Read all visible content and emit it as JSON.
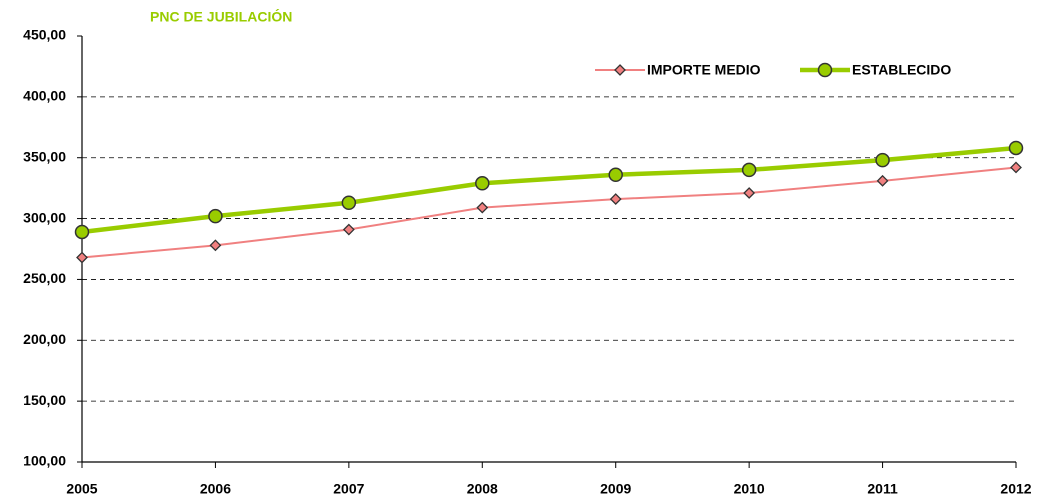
{
  "chart_data": {
    "type": "line",
    "title": "PNC DE JUBILACIÓN",
    "categories": [
      "2005",
      "2006",
      "2007",
      "2008",
      "2009",
      "2010",
      "2011",
      "2012"
    ],
    "series": [
      {
        "name": "IMPORTE MEDIO",
        "color": "#f08080",
        "marker": "diamond",
        "values": [
          268,
          278,
          291,
          309,
          316,
          321,
          331,
          342
        ]
      },
      {
        "name": "ESTABLECIDO",
        "color": "#99cc00",
        "marker": "circle",
        "values": [
          289,
          302,
          313,
          329,
          336,
          340,
          348,
          358
        ]
      }
    ],
    "ylim": [
      100,
      450
    ],
    "yticks": [
      {
        "value": 100,
        "label": "100,00"
      },
      {
        "value": 150,
        "label": "150,00"
      },
      {
        "value": 200,
        "label": "200,00"
      },
      {
        "value": 250,
        "label": "250,00"
      },
      {
        "value": 300,
        "label": "300,00"
      },
      {
        "value": 350,
        "label": "350,00"
      },
      {
        "value": 400,
        "label": "400,00"
      },
      {
        "value": 450,
        "label": "450,00"
      }
    ],
    "grid": true,
    "legend": "top-right"
  }
}
